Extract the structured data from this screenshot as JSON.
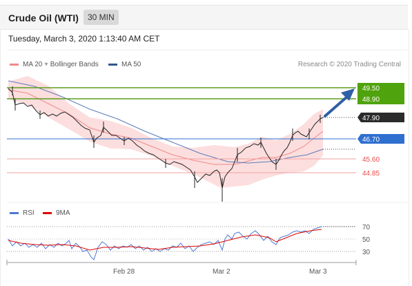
{
  "header": {
    "title": "Crude Oil (WTI)",
    "timeframe": "30 MIN"
  },
  "datetime": "Tuesday, March 3, 2020 1:13:40 AM CET",
  "legend": {
    "bollinger": {
      "label": "MA 20 + Bollinger Bands",
      "color": "#f08a8a"
    },
    "ma50": {
      "label": "MA 50",
      "color": "#33558c"
    },
    "credit": "Research © 2020 Trading Central"
  },
  "levels": {
    "r2": "49.50",
    "r1": "48.90",
    "last": "47.90",
    "pivot": "46.70",
    "s1": "45.60",
    "s2": "44.85"
  },
  "rsi_legend": {
    "rsi": {
      "label": "RSI",
      "color": "#4a78d4"
    },
    "ma9": {
      "label": "9MA",
      "color": "#e00000"
    }
  },
  "rsi_ticks": [
    "70",
    "50",
    "30"
  ],
  "x_labels": [
    "Feb 28",
    "Mar 2",
    "Mar 3"
  ],
  "colors": {
    "resistance": "#5a9e1c",
    "pivot": "#2f6fd0",
    "support": "#e94a4a",
    "last": "#333333"
  }
}
